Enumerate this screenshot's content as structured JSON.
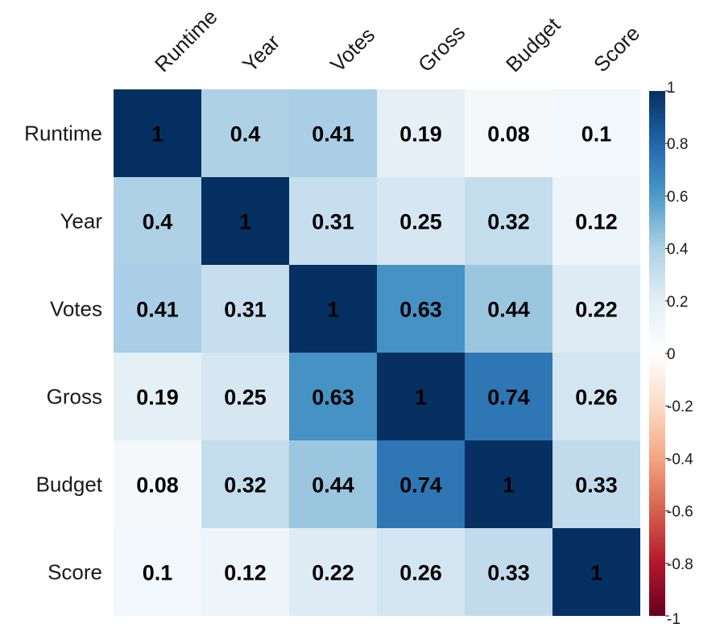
{
  "chart_data": {
    "type": "heatmap",
    "title": "",
    "variables": [
      "Runtime",
      "Year",
      "Votes",
      "Gross",
      "Budget",
      "Score"
    ],
    "matrix": [
      [
        1,
        0.4,
        0.41,
        0.19,
        0.08,
        0.1
      ],
      [
        0.4,
        1,
        0.31,
        0.25,
        0.32,
        0.12
      ],
      [
        0.41,
        0.31,
        1,
        0.63,
        0.44,
        0.22
      ],
      [
        0.19,
        0.25,
        0.63,
        1,
        0.74,
        0.26
      ],
      [
        0.08,
        0.32,
        0.44,
        0.74,
        1,
        0.33
      ],
      [
        0.1,
        0.12,
        0.22,
        0.26,
        0.33,
        1
      ]
    ],
    "cell_labels": [
      [
        "1",
        "0.4",
        "0.41",
        "0.19",
        "0.08",
        "0.1"
      ],
      [
        "0.4",
        "1",
        "0.31",
        "0.25",
        "0.32",
        "0.12"
      ],
      [
        "0.41",
        "0.31",
        "1",
        "0.63",
        "0.44",
        "0.22"
      ],
      [
        "0.19",
        "0.25",
        "0.63",
        "1",
        "0.74",
        "0.26"
      ],
      [
        "0.08",
        "0.32",
        "0.44",
        "0.74",
        "1",
        "0.33"
      ],
      [
        "0.1",
        "0.12",
        "0.22",
        "0.26",
        "0.33",
        "1"
      ]
    ],
    "color_scale": {
      "range": [
        -1,
        1
      ],
      "ticks": [
        1,
        0.8,
        0.6,
        0.4,
        0.2,
        0,
        -0.2,
        -0.4,
        -0.6,
        -0.8,
        -1
      ],
      "tick_labels": [
        "1",
        "0.8",
        "0.6",
        "0.4",
        "0.2",
        "0",
        "-0.2",
        "-0.4",
        "-0.6",
        "-0.8",
        "-1"
      ],
      "stops": [
        {
          "value": -1,
          "color": "#67001f"
        },
        {
          "value": -0.8,
          "color": "#b2182b"
        },
        {
          "value": -0.6,
          "color": "#d6604d"
        },
        {
          "value": -0.4,
          "color": "#f4a582"
        },
        {
          "value": -0.2,
          "color": "#fddbc7"
        },
        {
          "value": 0,
          "color": "#ffffff"
        },
        {
          "value": 0.2,
          "color": "#e3eef6"
        },
        {
          "value": 0.4,
          "color": "#aed1e6"
        },
        {
          "value": 0.6,
          "color": "#4d9ac8"
        },
        {
          "value": 0.8,
          "color": "#2166ac"
        },
        {
          "value": 1,
          "color": "#053061"
        }
      ]
    },
    "label_color": "#000000",
    "legend_position": "right",
    "column_labels_rotated": true
  }
}
